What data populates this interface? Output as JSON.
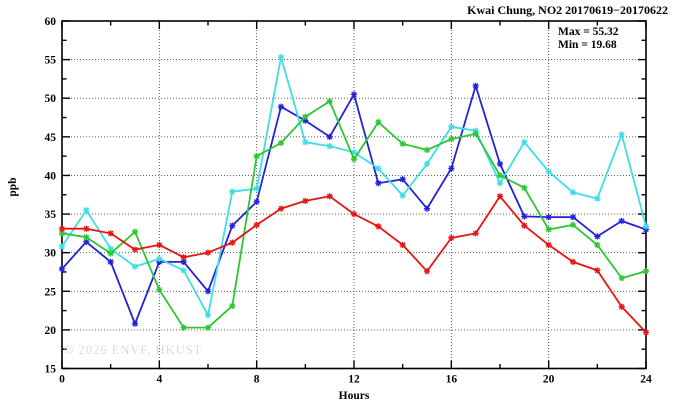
{
  "header": {
    "title": "Kwai Chung, NO2 20170619−20170622"
  },
  "annotations": {
    "max_label": "Max = 55.32",
    "min_label": "Min = 19.68"
  },
  "watermark": "© 2026 ENVF, HKUST",
  "chart_data": {
    "type": "line",
    "title": "Kwai Chung, NO2 20170619−20170622",
    "xlabel": "Hours",
    "ylabel": "ppb",
    "xlim": [
      0,
      24
    ],
    "ylim": [
      15,
      60
    ],
    "xticks_major": [
      0,
      4,
      8,
      12,
      16,
      20,
      24
    ],
    "xticks_minor": [
      2,
      6,
      10,
      14,
      18,
      22
    ],
    "yticks_major": [
      15,
      20,
      25,
      30,
      35,
      40,
      45,
      50,
      55,
      60
    ],
    "yticks_minor": [
      17.5,
      22.5,
      27.5,
      32.5,
      37.5,
      42.5,
      47.5,
      52.5,
      57.5
    ],
    "grid": true,
    "legend": "none",
    "max_value": 55.32,
    "min_value": 19.68,
    "x": [
      0,
      1,
      2,
      3,
      4,
      5,
      6,
      7,
      8,
      9,
      10,
      11,
      12,
      13,
      14,
      15,
      16,
      17,
      18,
      19,
      20,
      21,
      22,
      23,
      24
    ],
    "series": [
      {
        "name": "blue",
        "color": "#2222dd",
        "values": [
          27.9,
          31.4,
          28.8,
          20.8,
          28.8,
          28.8,
          25.0,
          33.5,
          36.6,
          48.9,
          47.1,
          45.0,
          50.5,
          39.0,
          39.5,
          35.7,
          40.9,
          51.6,
          41.5,
          34.7,
          34.6,
          34.6,
          32.1,
          34.1,
          33.0
        ]
      },
      {
        "name": "cyan",
        "color": "#3fdde8",
        "values": [
          30.8,
          35.5,
          30.5,
          28.2,
          29.2,
          27.7,
          21.9,
          37.9,
          38.3,
          55.32,
          44.3,
          43.8,
          43.0,
          40.9,
          37.4,
          41.5,
          46.3,
          45.8,
          39.0,
          44.3,
          40.5,
          37.8,
          37.0,
          45.3,
          33.4
        ]
      },
      {
        "name": "green",
        "color": "#2cc832",
        "values": [
          32.5,
          32.0,
          29.9,
          32.7,
          25.2,
          20.3,
          20.3,
          23.1,
          42.5,
          44.2,
          47.6,
          49.6,
          42.1,
          46.9,
          44.1,
          43.3,
          44.7,
          45.4,
          40.0,
          38.4,
          33.0,
          33.6,
          31.0,
          26.7,
          27.6
        ]
      },
      {
        "name": "red",
        "color": "#e81414",
        "values": [
          33.1,
          33.1,
          32.5,
          30.4,
          31.0,
          29.4,
          30.0,
          31.3,
          33.6,
          35.7,
          36.7,
          37.3,
          35.0,
          33.4,
          31.0,
          27.6,
          31.9,
          32.5,
          37.3,
          33.5,
          31.0,
          28.8,
          27.7,
          23.0,
          19.68
        ]
      }
    ]
  }
}
